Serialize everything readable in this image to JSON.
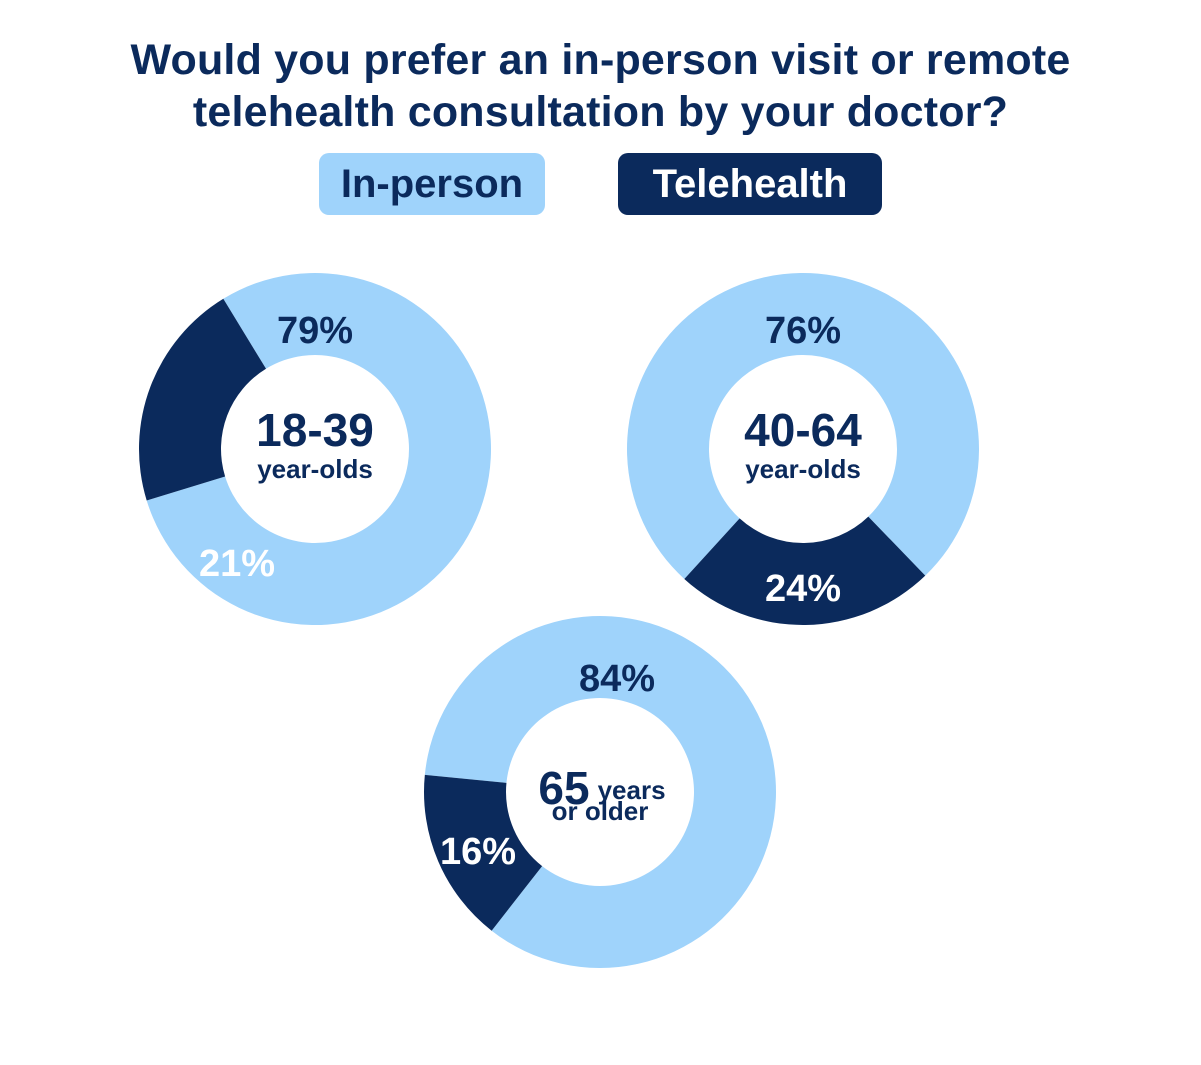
{
  "title_lines": [
    "Would you prefer an in-person visit or remote",
    "telehealth consultation by your doctor?"
  ],
  "legend": {
    "in_person": "In-person",
    "telehealth": "Telehealth"
  },
  "colors": {
    "in_person": "#9fd3fb",
    "telehealth": "#0b2a5c",
    "text_dark": "#0b2a5c",
    "text_light": "#ffffff"
  },
  "chart_data": [
    {
      "type": "pie",
      "group": "18-39 year-olds",
      "center_label_main": "18-39",
      "center_label_sub": "year-olds",
      "series": [
        {
          "name": "In-person",
          "value": 79,
          "label": "79%"
        },
        {
          "name": "Telehealth",
          "value": 21,
          "label": "21%"
        }
      ]
    },
    {
      "type": "pie",
      "group": "40-64 year-olds",
      "center_label_main": "40-64",
      "center_label_sub": "year-olds",
      "series": [
        {
          "name": "In-person",
          "value": 76,
          "label": "76%"
        },
        {
          "name": "Telehealth",
          "value": 24,
          "label": "24%"
        }
      ]
    },
    {
      "type": "pie",
      "group": "65 years or older",
      "center_label_main": "65",
      "center_label_inline": "years",
      "center_label_sub": "or older",
      "series": [
        {
          "name": "In-person",
          "value": 84,
          "label": "84%"
        },
        {
          "name": "Telehealth",
          "value": 16,
          "label": "16%"
        }
      ]
    }
  ]
}
